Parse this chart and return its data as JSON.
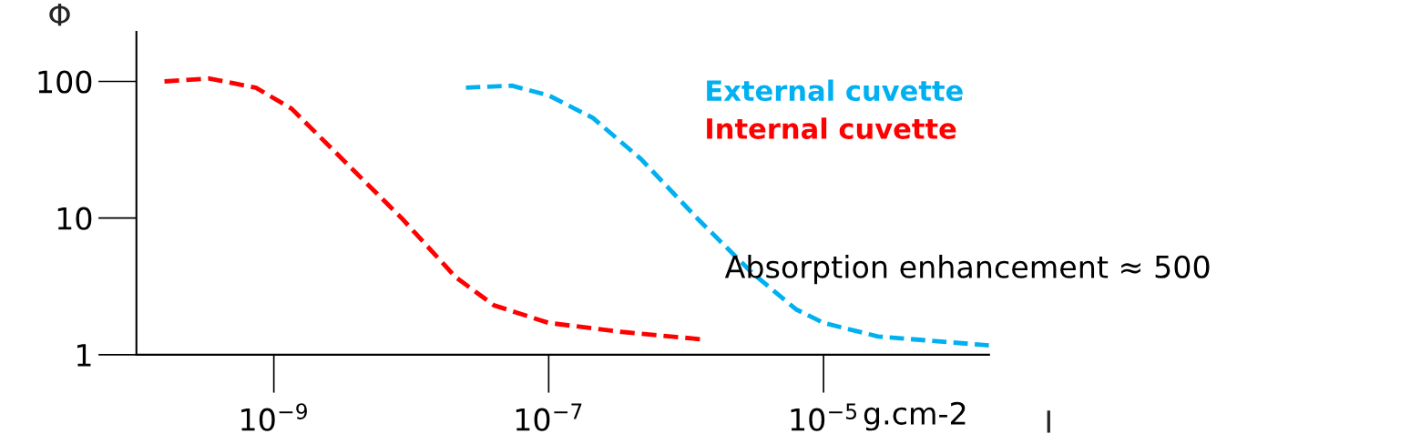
{
  "chart_data": {
    "type": "line",
    "xlabel": "I",
    "ylabel": "Φ",
    "log": "xy",
    "line_style": "dashed",
    "grid": false,
    "legend": "top right",
    "xlim": [
      1e-10,
      0.00016
    ],
    "ylim": [
      1,
      230
    ],
    "xticks": [
      {
        "value": 1e-09,
        "label": "10$^{−9}$"
      },
      {
        "value": 1e-07,
        "label": "10$^{−7}$"
      },
      {
        "value": 1e-05,
        "label": "10$^{−5}$"
      }
    ],
    "yticks": [
      1,
      10,
      100
    ],
    "annotations": [
      "g.cm-2",
      "Absorption enhancement ≈ 500"
    ],
    "series": [
      {
        "name": "External cuvette",
        "color": "#00b0f0",
        "x": [
          2.5e-08,
          5.4e-08,
          1e-07,
          2.1e-07,
          4.7e-07,
          1.2e-06,
          3e-06,
          6.3e-06,
          1e-05,
          2.5e-05,
          0.00016
        ],
        "values": [
          90,
          93,
          79,
          54,
          27,
          10,
          4,
          2.15,
          1.71,
          1.36,
          1.17
        ]
      },
      {
        "name": "Internal cuvette",
        "color": "#ff0000",
        "x": [
          1.6e-10,
          3.4e-10,
          7.4e-10,
          1.35e-09,
          3.4e-09,
          8.5e-09,
          2.1e-08,
          4e-08,
          1e-07,
          3.4e-07,
          1.26e-06
        ],
        "values": [
          100,
          105,
          90,
          63,
          25,
          10,
          3.7,
          2.3,
          1.71,
          1.47,
          1.3
        ]
      }
    ]
  }
}
